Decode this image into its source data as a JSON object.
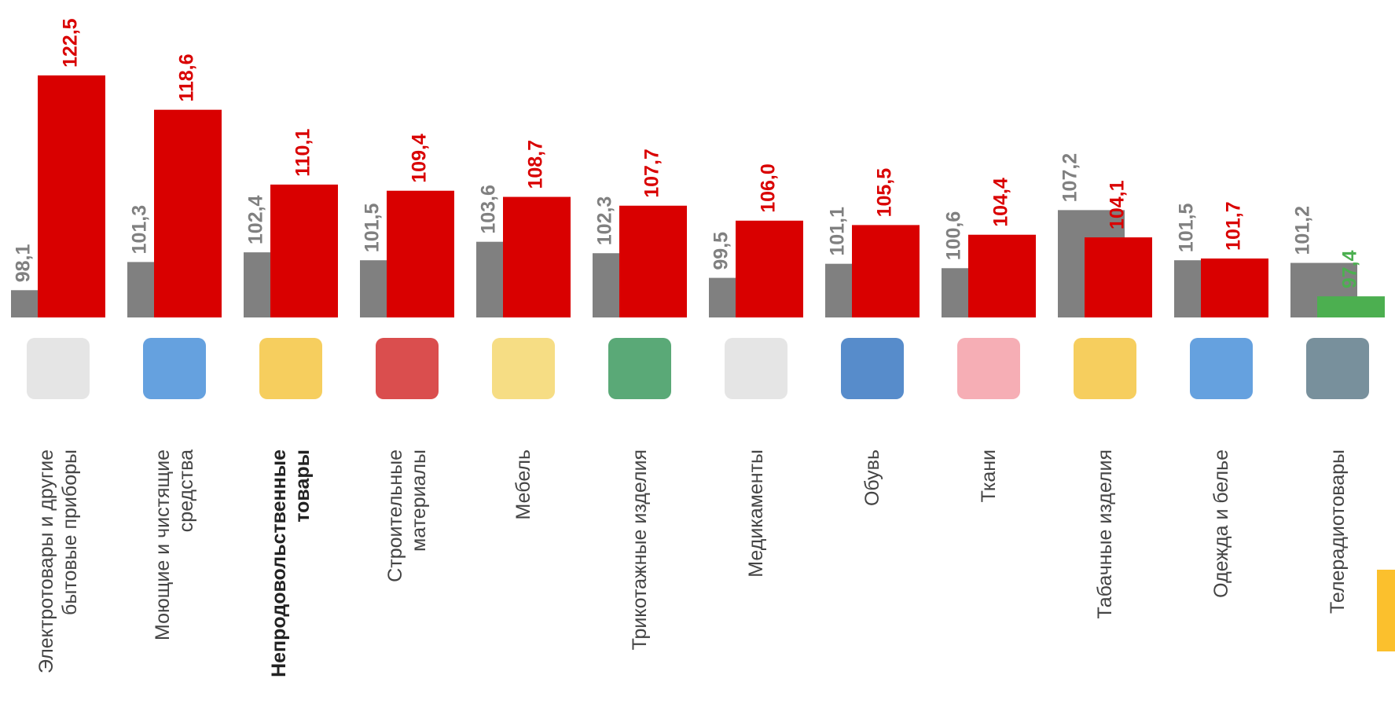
{
  "chart_data": {
    "type": "bar",
    "categories": [
      "Электротовары  и другие\nбытовые приборы",
      "Моющие и чистящие\nсредства",
      "Непродовольственные\nтовары",
      "Строительные\nматериалы",
      "Мебель",
      "Трикотажные изделия",
      "Медикаменты",
      "Обувь",
      "Ткани",
      "Табачные изделия",
      "Одежда и белье",
      "Телерадиотовары"
    ],
    "series": [
      {
        "color": "#808080",
        "values": [
          98.1,
          101.3,
          102.4,
          101.5,
          103.6,
          102.3,
          99.5,
          101.1,
          100.6,
          107.2,
          101.5,
          101.2
        ],
        "value_labels": [
          "98,1",
          "101,3",
          "102,4",
          "101,5",
          "103,6",
          "102,3",
          "99,5",
          "101,1",
          "100,6",
          "107,2",
          "101,5",
          "101,2"
        ]
      },
      {
        "color": "#d90000",
        "colors": [
          "#d90000",
          "#d90000",
          "#d90000",
          "#d90000",
          "#d90000",
          "#d90000",
          "#d90000",
          "#d90000",
          "#d90000",
          "#d90000",
          "#d90000",
          "#4caf50"
        ],
        "values": [
          122.5,
          118.6,
          110.1,
          109.4,
          108.7,
          107.7,
          106.0,
          105.5,
          104.4,
          104.1,
          101.7,
          97.4
        ],
        "value_labels": [
          "122,5",
          "118,6",
          "110,1",
          "109,4",
          "108,7",
          "107,7",
          "106,0",
          "105,5",
          "104,4",
          "104,1",
          "101,7",
          "97,4"
        ]
      }
    ],
    "ylim": [
      95,
      125
    ],
    "bold_category": 2
  }
}
